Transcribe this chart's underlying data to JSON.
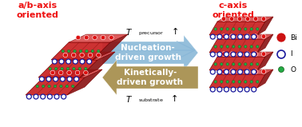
{
  "title_left": "a/b-axis\noriented",
  "title_right": "c-axis\noriented",
  "title_color": "#ee1111",
  "arrow_up_color": "#8ab8d8",
  "arrow_down_color": "#a89050",
  "arrow_up_text": "Nucleation-\ndriven growth",
  "arrow_down_text": "Kinetically-\ndriven growth",
  "top_label_sub": "precursor",
  "bottom_label_sub": "substrate",
  "legend_bi_color": "#cc1111",
  "legend_i_color": "#1a1a9c",
  "legend_o_color": "#22aa44",
  "bg_color": "#ffffff",
  "figsize": [
    3.78,
    1.59
  ],
  "dpi": 100
}
